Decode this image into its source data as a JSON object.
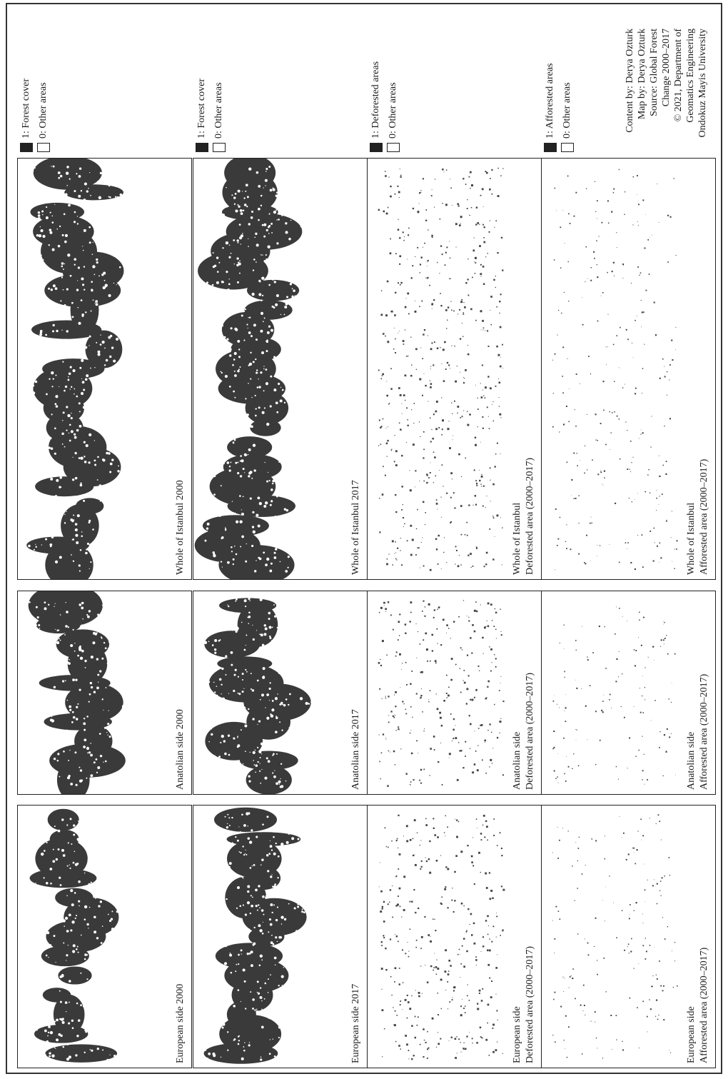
{
  "colors": {
    "forest": "#3a3a3a",
    "other": "#ffffff",
    "frame": "#333333"
  },
  "legends": [
    {
      "id": "forest-2000",
      "items": [
        {
          "label": "1: Forest cover",
          "fill": "#222222"
        },
        {
          "label": "0: Other areas",
          "fill": "#ffffff"
        }
      ]
    },
    {
      "id": "forest-2017",
      "items": [
        {
          "label": "1: Forest cover",
          "fill": "#222222"
        },
        {
          "label": "0: Other areas",
          "fill": "#ffffff"
        }
      ]
    },
    {
      "id": "deforested",
      "items": [
        {
          "label": "1: Deforested areas",
          "fill": "#222222"
        },
        {
          "label": "0: Other areas",
          "fill": "#ffffff"
        }
      ]
    },
    {
      "id": "afforested",
      "items": [
        {
          "label": "1: Afforested areas",
          "fill": "#222222"
        },
        {
          "label": "0: Other areas",
          "fill": "#ffffff"
        }
      ]
    }
  ],
  "panels": [
    {
      "row": 0,
      "col": 0,
      "title": [
        "European side 2000"
      ],
      "content": "forest"
    },
    {
      "row": 0,
      "col": 1,
      "title": [
        "Anatolian side 2000"
      ],
      "content": "forest"
    },
    {
      "row": 0,
      "col": 2,
      "title": [
        "Whole of Istanbul 2000"
      ],
      "content": "forest"
    },
    {
      "row": 1,
      "col": 0,
      "title": [
        "European side 2017"
      ],
      "content": "forest"
    },
    {
      "row": 1,
      "col": 1,
      "title": [
        "Anatolian side 2017"
      ],
      "content": "forest"
    },
    {
      "row": 1,
      "col": 2,
      "title": [
        "Whole of Istanbul 2017"
      ],
      "content": "forest"
    },
    {
      "row": 2,
      "col": 0,
      "title": [
        "European side",
        "Deforested area (2000–2017)"
      ],
      "content": "sparse"
    },
    {
      "row": 2,
      "col": 1,
      "title": [
        "Anatolian side",
        "Deforested area (2000–2017)"
      ],
      "content": "sparse"
    },
    {
      "row": 2,
      "col": 2,
      "title": [
        "Whole of Istanbul",
        "Deforested area (2000–2017)"
      ],
      "content": "sparse"
    },
    {
      "row": 3,
      "col": 0,
      "title": [
        "European side",
        "Afforested area (2000–2017)"
      ],
      "content": "very-sparse"
    },
    {
      "row": 3,
      "col": 1,
      "title": [
        "Anatolian side",
        "Afforested area (2000–2017)"
      ],
      "content": "very-sparse"
    },
    {
      "row": 3,
      "col": 2,
      "title": [
        "Whole of Istanbul",
        "Afforested area (2000–2017)"
      ],
      "content": "very-sparse"
    }
  ],
  "credits": [
    "Content by: Derya Ozturk",
    "Map by: Derya Ozturk",
    "Source: Global Forest",
    "Change 2000–2017",
    "© 2021, Department of",
    "Geomatics Engineering",
    "Ondokuz Mayis University"
  ]
}
